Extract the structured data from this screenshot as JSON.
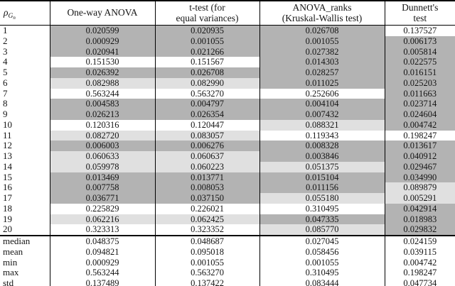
{
  "table": {
    "colors": {
      "dark": "#b3b3b3",
      "light": "#e0e0e0",
      "white": "#ffffff",
      "border": "#000000",
      "text": "#141414"
    },
    "header": {
      "rho": {
        "symbol": "ρ",
        "sub": "G",
        "subsub": "n"
      },
      "col1": "One-way ANOVA",
      "col2": [
        "t-test (for",
        "equal variances)"
      ],
      "col3": [
        "ANOVA_ranks",
        "(Kruskal-Wallis test)"
      ],
      "col4": [
        "Dunnett's",
        "test"
      ]
    },
    "rows": [
      {
        "label": "1",
        "values": [
          "0.020599",
          "0.020935",
          "0.026708",
          "0.137527"
        ],
        "shades": [
          "dark",
          "dark",
          "dark",
          "white"
        ]
      },
      {
        "label": "2",
        "values": [
          "0.000929",
          "0.001055",
          "0.001055",
          "0.006173"
        ],
        "shades": [
          "dark",
          "dark",
          "dark",
          "dark"
        ]
      },
      {
        "label": "3",
        "values": [
          "0.020941",
          "0.021266",
          "0.027382",
          "0.005814"
        ],
        "shades": [
          "dark",
          "dark",
          "dark",
          "dark"
        ]
      },
      {
        "label": "4",
        "values": [
          "0.151530",
          "0.151567",
          "0.014303",
          "0.022575"
        ],
        "shades": [
          "white",
          "white",
          "dark",
          "dark"
        ]
      },
      {
        "label": "5",
        "values": [
          "0.026392",
          "0.026708",
          "0.028257",
          "0.016151"
        ],
        "shades": [
          "dark",
          "dark",
          "dark",
          "dark"
        ]
      },
      {
        "label": "6",
        "values": [
          "0.082988",
          "0.082990",
          "0.011025",
          "0.025203"
        ],
        "shades": [
          "light",
          "light",
          "dark",
          "dark"
        ]
      },
      {
        "label": "7",
        "values": [
          "0.563244",
          "0.563270",
          "0.252606",
          "0.011663"
        ],
        "shades": [
          "white",
          "white",
          "white",
          "dark"
        ]
      },
      {
        "label": "8",
        "values": [
          "0.004583",
          "0.004797",
          "0.004104",
          "0.023714"
        ],
        "shades": [
          "dark",
          "dark",
          "dark",
          "dark"
        ]
      },
      {
        "label": "9",
        "values": [
          "0.026213",
          "0.026354",
          "0.007432",
          "0.024604"
        ],
        "shades": [
          "dark",
          "dark",
          "dark",
          "dark"
        ]
      },
      {
        "label": "10",
        "values": [
          "0.120316",
          "0.120447",
          "0.088321",
          "0.004742"
        ],
        "shades": [
          "white",
          "white",
          "light",
          "dark"
        ]
      },
      {
        "label": "11",
        "values": [
          "0.082720",
          "0.083057",
          "0.119343",
          "0.198247"
        ],
        "shades": [
          "light",
          "light",
          "white",
          "white"
        ]
      },
      {
        "label": "12",
        "values": [
          "0.006003",
          "0.006276",
          "0.008328",
          "0.013617"
        ],
        "shades": [
          "dark",
          "dark",
          "dark",
          "dark"
        ]
      },
      {
        "label": "13",
        "values": [
          "0.060633",
          "0.060637",
          "0.003846",
          "0.040912"
        ],
        "shades": [
          "light",
          "light",
          "dark",
          "dark"
        ]
      },
      {
        "label": "14",
        "values": [
          "0.059978",
          "0.060223",
          "0.051375",
          "0.029467"
        ],
        "shades": [
          "light",
          "light",
          "light",
          "dark"
        ]
      },
      {
        "label": "15",
        "values": [
          "0.013469",
          "0.013771",
          "0.015104",
          "0.034990"
        ],
        "shades": [
          "dark",
          "dark",
          "dark",
          "dark"
        ]
      },
      {
        "label": "16",
        "values": [
          "0.007758",
          "0.008053",
          "0.011156",
          "0.089879"
        ],
        "shades": [
          "dark",
          "dark",
          "dark",
          "light"
        ]
      },
      {
        "label": "17",
        "values": [
          "0.036771",
          "0.037150",
          "0.055180",
          "0.005291"
        ],
        "shades": [
          "dark",
          "dark",
          "light",
          "light"
        ]
      },
      {
        "label": "18",
        "values": [
          "0.225829",
          "0.226021",
          "0.310495",
          "0.042914"
        ],
        "shades": [
          "white",
          "white",
          "white",
          "dark"
        ]
      },
      {
        "label": "19",
        "values": [
          "0.062216",
          "0.062425",
          "0.047335",
          "0.018983"
        ],
        "shades": [
          "light",
          "light",
          "dark",
          "dark"
        ]
      },
      {
        "label": "20",
        "values": [
          "0.323313",
          "0.323352",
          "0.085770",
          "0.029832"
        ],
        "shades": [
          "white",
          "white",
          "light",
          "dark"
        ]
      }
    ],
    "summary_rows": [
      {
        "label": "median",
        "values": [
          "0.048375",
          "0.048687",
          "0.027045",
          "0.024159"
        ]
      },
      {
        "label": "mean",
        "values": [
          "0.094821",
          "0.095018",
          "0.058456",
          "0.039115"
        ]
      },
      {
        "label": "min",
        "values": [
          "0.000929",
          "0.001055",
          "0.001055",
          "0.004742"
        ]
      },
      {
        "label": "max",
        "values": [
          "0.563244",
          "0.563270",
          "0.310495",
          "0.198247"
        ]
      },
      {
        "label": "std",
        "values": [
          "0.137489",
          "0.137422",
          "0.083444",
          "0.047734"
        ]
      }
    ]
  }
}
